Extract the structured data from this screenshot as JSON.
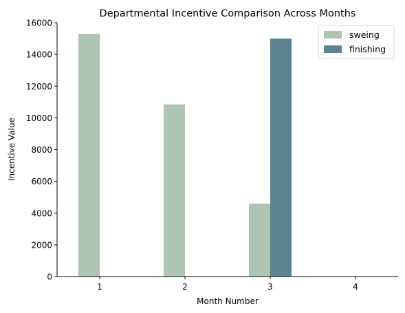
{
  "chart_data": {
    "type": "bar",
    "title": "Departmental Incentive Comparison Across Months",
    "xlabel": "Month Number",
    "ylabel": "Incentive Value",
    "categories": [
      "1",
      "2",
      "3",
      "4"
    ],
    "series": [
      {
        "name": "sweing",
        "values": [
          15300,
          10850,
          4600,
          0
        ],
        "color": "#afc4b2"
      },
      {
        "name": "finishing",
        "values": [
          0,
          0,
          15000,
          0
        ],
        "color": "#5b8290"
      }
    ],
    "ylim": [
      0,
      16000
    ],
    "yticks": [
      0,
      2000,
      4000,
      6000,
      8000,
      10000,
      12000,
      14000,
      16000
    ],
    "grid": false,
    "legend_position": "top-right",
    "spines": "left-bottom"
  }
}
